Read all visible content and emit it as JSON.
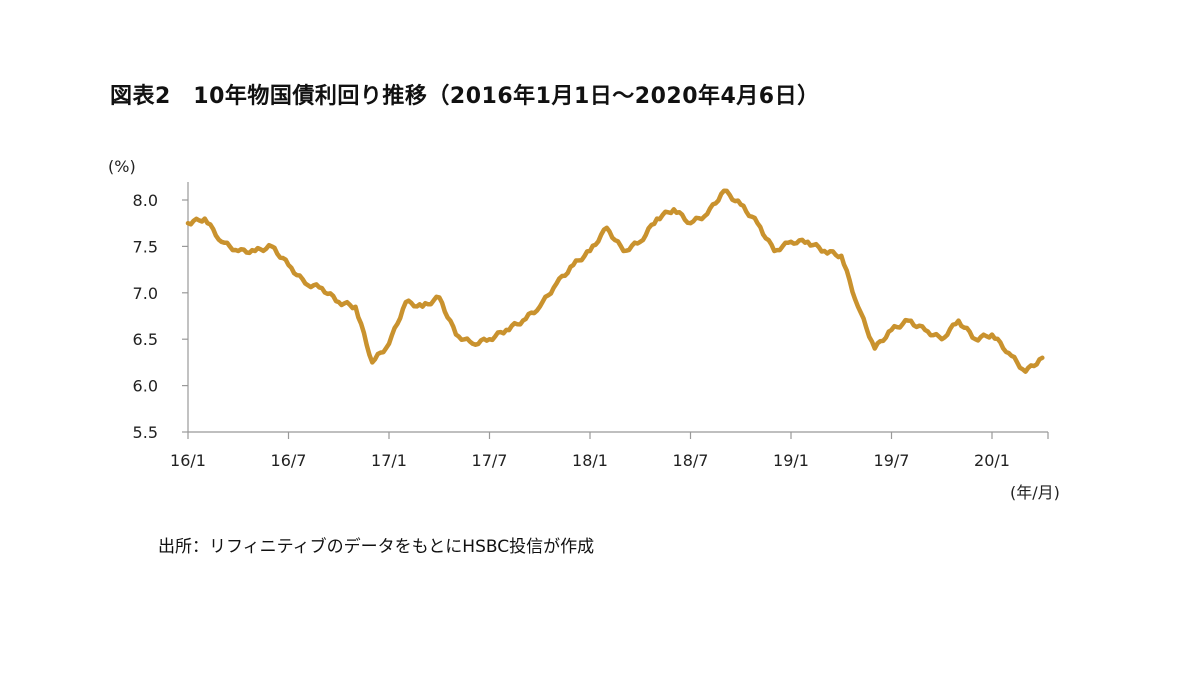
{
  "title": "図表2　10年物国債利回り推移（2016年1月1日～2020年4月6日）",
  "source": "出所：リフィニティブのデータをもとにHSBC投信が作成",
  "colors": {
    "line": "#C9922E",
    "axis": "#999999",
    "text": "#222222"
  },
  "chart_data": {
    "type": "line",
    "title": "図表2　10年物国債利回り推移（2016年1月1日～2020年4月6日）",
    "ylabel": "(%)",
    "xlabel": "(年/月)",
    "ylim": [
      5.5,
      8.2
    ],
    "yticks": [
      "8.0",
      "7.5",
      "7.0",
      "6.5",
      "6.0",
      "5.5"
    ],
    "xticks": [
      "16/1",
      "16/7",
      "17/1",
      "17/7",
      "18/1",
      "18/7",
      "19/1",
      "19/7",
      "20/1"
    ],
    "xdomain": [
      "2016-01",
      "2020-04"
    ],
    "grid": false,
    "series": [
      {
        "name": "",
        "x": [
          "2016-01",
          "2016-02",
          "2016-03",
          "2016-04",
          "2016-05",
          "2016-06",
          "2016-07",
          "2016-08",
          "2016-09",
          "2016-10",
          "2016-11",
          "2016-12",
          "2017-01",
          "2017-02",
          "2017-03",
          "2017-04",
          "2017-05",
          "2017-06",
          "2017-07",
          "2017-08",
          "2017-09",
          "2017-10",
          "2017-11",
          "2017-12",
          "2018-01",
          "2018-02",
          "2018-03",
          "2018-04",
          "2018-05",
          "2018-06",
          "2018-07",
          "2018-08",
          "2018-09",
          "2018-10",
          "2018-11",
          "2018-12",
          "2019-01",
          "2019-02",
          "2019-03",
          "2019-04",
          "2019-05",
          "2019-06",
          "2019-07",
          "2019-08",
          "2019-09",
          "2019-10",
          "2019-11",
          "2019-12",
          "2020-01",
          "2020-02",
          "2020-03",
          "2020-04"
        ],
        "values": [
          7.75,
          7.8,
          7.55,
          7.45,
          7.45,
          7.5,
          7.3,
          7.1,
          7.05,
          6.9,
          6.85,
          6.25,
          6.45,
          6.9,
          6.85,
          6.95,
          6.55,
          6.45,
          6.5,
          6.6,
          6.7,
          6.85,
          7.1,
          7.3,
          7.45,
          7.7,
          7.45,
          7.55,
          7.8,
          7.9,
          7.75,
          7.85,
          8.1,
          7.95,
          7.75,
          7.45,
          7.55,
          7.55,
          7.45,
          7.4,
          6.85,
          6.4,
          6.6,
          6.7,
          6.6,
          6.5,
          6.7,
          6.5,
          6.55,
          6.35,
          6.15,
          6.3
        ]
      }
    ]
  }
}
